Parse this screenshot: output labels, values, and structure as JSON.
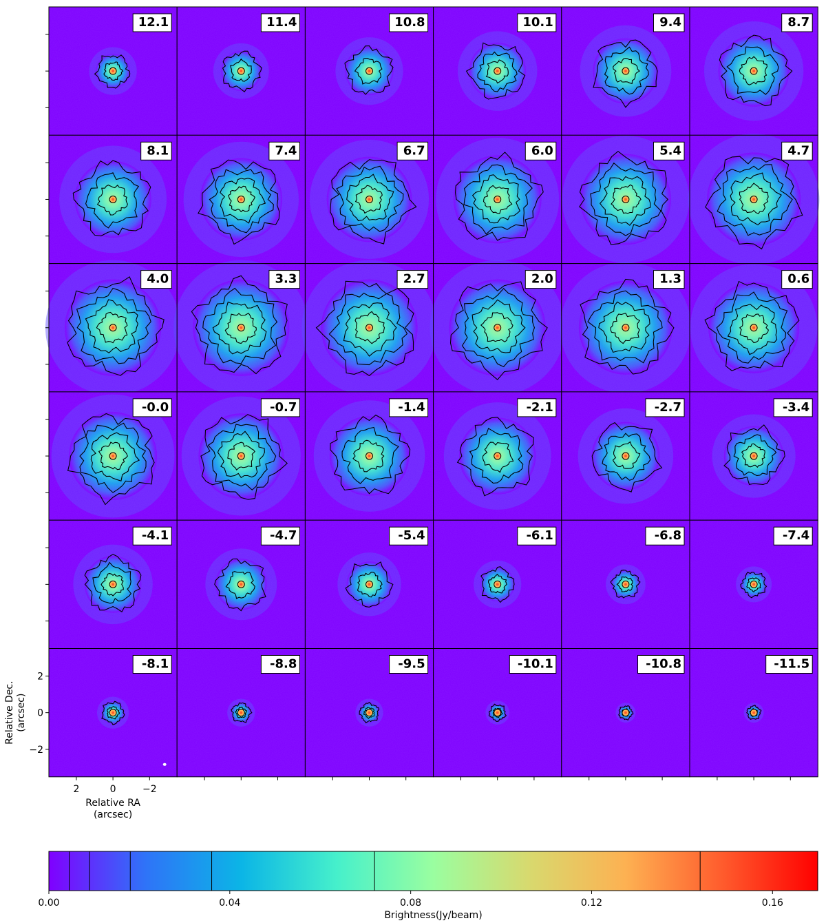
{
  "chart_data": {
    "type": "heatmap",
    "layout": "6x6 channel-map grid",
    "channel_labels": [
      "12.1",
      "11.4",
      "10.8",
      "10.1",
      "9.4",
      "8.7",
      "8.1",
      "7.4",
      "6.7",
      "6.0",
      "5.4",
      "4.7",
      "4.0",
      "3.3",
      "2.7",
      "2.0",
      "1.3",
      "0.6",
      "-0.0",
      "-0.7",
      "-1.4",
      "-2.1",
      "-2.7",
      "-3.4",
      "-4.1",
      "-4.7",
      "-5.4",
      "-6.1",
      "-6.8",
      "-7.4",
      "-8.1",
      "-8.8",
      "-9.5",
      "-10.1",
      "-10.8",
      "-11.5"
    ],
    "channel_extent_arcsec": [
      1.2,
      1.4,
      1.7,
      2.0,
      2.3,
      2.5,
      2.7,
      2.9,
      3.0,
      3.1,
      3.2,
      3.3,
      3.4,
      3.4,
      3.4,
      3.4,
      3.3,
      3.2,
      3.1,
      3.0,
      2.8,
      2.7,
      2.4,
      2.1,
      2.0,
      1.8,
      1.6,
      1.2,
      1.0,
      0.9,
      0.8,
      0.7,
      0.7,
      0.6,
      0.5,
      0.5
    ],
    "xlabel": "Relative RA\n(arcsec)",
    "ylabel": "Relative Dec.\n(arcsec)",
    "x_ticks": [
      2,
      0,
      -2
    ],
    "y_ticks": [
      2,
      0,
      -2
    ],
    "x_tick_labels": [
      "2",
      "0",
      "−2"
    ],
    "y_tick_labels": [
      "2",
      "0",
      "−2"
    ],
    "xlim": [
      3.5,
      -3.5
    ],
    "ylim": [
      -3.5,
      3.5
    ],
    "colorbar": {
      "label": "Brightness(Jy/beam)",
      "range": [
        0.0,
        0.17
      ],
      "ticks": [
        0.0,
        0.04,
        0.08,
        0.12,
        0.16
      ],
      "tick_labels": [
        "0.00",
        "0.04",
        "0.08",
        "0.12",
        "0.16"
      ],
      "contour_levels": [
        0.0045,
        0.009,
        0.018,
        0.036,
        0.072,
        0.144
      ],
      "colormap": "rainbow",
      "colors": [
        "#8000ff",
        "#2f73f8",
        "#0bb5e6",
        "#46f0cb",
        "#9afea0",
        "#d8d96e",
        "#fdb152",
        "#ff5c2d",
        "#ff0000"
      ]
    },
    "background_color": "#8000ff",
    "contour_color": "#000000",
    "grid": false,
    "legend": "none"
  }
}
